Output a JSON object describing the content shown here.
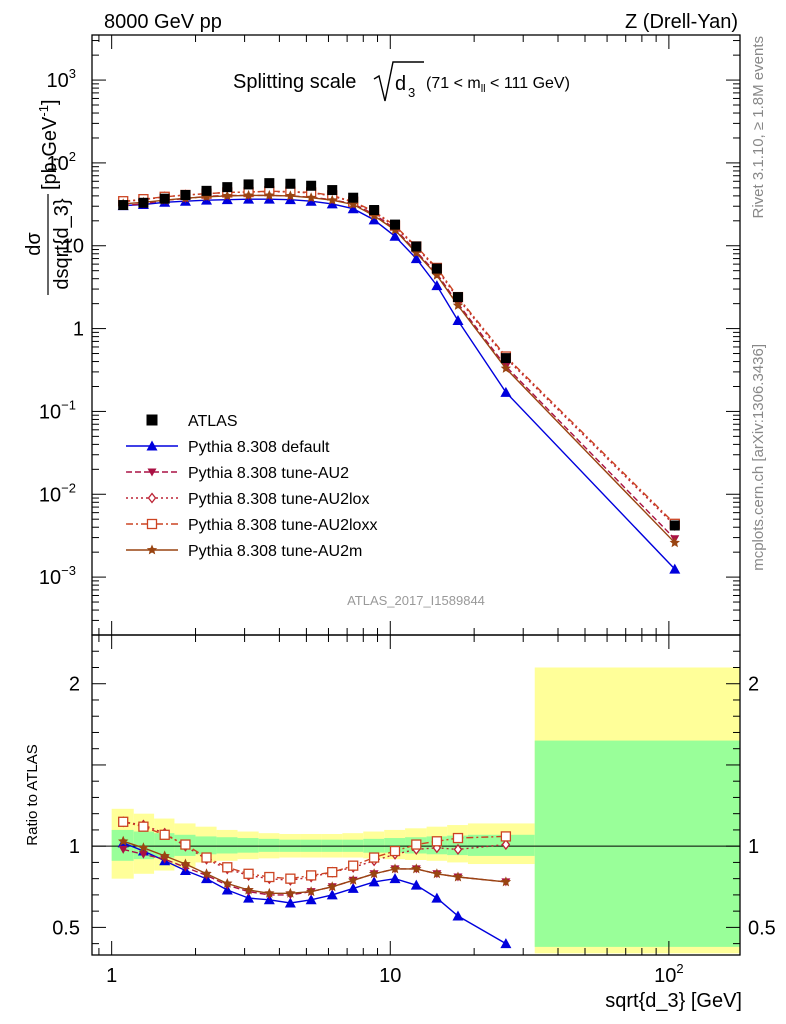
{
  "header": {
    "left": "8000 GeV pp",
    "right": "Z (Drell-Yan)"
  },
  "side_texts": {
    "rivet": "Rivet 3.1.10, ≥ 1.8M events",
    "mcplots": "mcplots.cern.ch [arXiv:1306.3436]"
  },
  "watermark": "ATLAS_2017_I1589844",
  "chart_data": [
    {
      "type": "line",
      "title_main": "Splitting scale",
      "title_sqrt": "d",
      "title_sub": "3",
      "title_range_a": "(71 < m",
      "title_range_sub": "ll",
      "title_range_b": " < 111 GeV)",
      "ylabel_num": "dσ",
      "ylabel_den": "dsqrt{d_3}",
      "ylabel_units": "[pb,GeV",
      "ylabel_units_sup": "-1",
      "ylabel_units_end": "]",
      "xscale": "log",
      "yscale": "log",
      "xlim": [
        0.85,
        180
      ],
      "ylim": [
        0.0002,
        3500
      ],
      "yticks": [
        {
          "v": 0.001,
          "base": "10",
          "exp": "−3"
        },
        {
          "v": 0.01,
          "base": "10",
          "exp": "−2"
        },
        {
          "v": 0.1,
          "base": "10",
          "exp": "−1"
        },
        {
          "v": 1,
          "base": "1",
          "exp": ""
        },
        {
          "v": 10,
          "base": "10",
          "exp": ""
        },
        {
          "v": 100,
          "base": "10",
          "exp": "2"
        },
        {
          "v": 1000,
          "base": "10",
          "exp": "3"
        }
      ],
      "legend_position": "bottom-left",
      "x": [
        1.1,
        1.3,
        1.55,
        1.84,
        2.19,
        2.6,
        3.1,
        3.68,
        4.38,
        5.2,
        6.19,
        7.36,
        8.75,
        10.4,
        12.4,
        14.7,
        17.5,
        26.0,
        105.0
      ],
      "series": [
        {
          "name": "ATLAS",
          "color": "#000000",
          "marker": "square",
          "dash": "none",
          "values": [
            31,
            33,
            37,
            41,
            46,
            51,
            55,
            57,
            56,
            53,
            47,
            38,
            27,
            18,
            9.8,
            5.3,
            2.4,
            0.44,
            0.0042
          ]
        },
        {
          "name": "Pythia 8.308 default",
          "color": "#0000dd",
          "marker": "triangle-up",
          "dash": "none",
          "values": [
            30.5,
            31.5,
            33.5,
            34.5,
            35.5,
            36,
            36.5,
            36.5,
            36,
            34.5,
            32,
            28,
            20.5,
            13,
            7.0,
            3.3,
            1.25,
            0.17,
            0.00125
          ]
        },
        {
          "name": "Pythia 8.308 tune-AU2",
          "color": "#aa1144",
          "marker": "triangle-down",
          "dash": "6,3",
          "values": [
            30.5,
            32,
            35.5,
            37,
            39.5,
            40.5,
            40.5,
            40.5,
            40,
            38.5,
            36,
            32,
            24,
            16,
            8.5,
            4.6,
            2.0,
            0.35,
            0.0029
          ]
        },
        {
          "name": "Pythia 8.308 tune-AU2lox",
          "color": "#bb2233",
          "marker": "diamond",
          "dash": "2,3",
          "values": [
            34,
            36,
            39,
            41,
            42.5,
            44,
            44.5,
            45,
            44.5,
            43.5,
            40,
            33.5,
            25.5,
            17,
            9.5,
            5.2,
            2.3,
            0.44,
            0.0042
          ]
        },
        {
          "name": "Pythia 8.308 tune-AU2loxx",
          "color": "#cc4422",
          "marker": "square-open",
          "dash": "7,3,2,3",
          "values": [
            34.5,
            36.5,
            39,
            41,
            42.5,
            44,
            44.5,
            45.5,
            45,
            44,
            40.5,
            34,
            26,
            17.5,
            9.8,
            5.4,
            2.4,
            0.46,
            0.0044
          ]
        },
        {
          "name": "Pythia 8.308 tune-AU2m",
          "color": "#994411",
          "marker": "star",
          "dash": "none",
          "values": [
            32,
            33.5,
            35.5,
            37.5,
            39,
            40,
            40.5,
            40.5,
            40,
            38,
            35.5,
            31.5,
            23,
            15.5,
            8.2,
            4.4,
            1.9,
            0.33,
            0.0026
          ]
        }
      ]
    },
    {
      "type": "line",
      "ylabel": "Ratio to ATLAS",
      "xlabel": "sqrt{d_3} [GeV]",
      "xscale": "log",
      "xlim": [
        0.85,
        180
      ],
      "ylim": [
        0.33,
        2.3
      ],
      "yticks": [
        {
          "v": 0.5,
          "label": "0.5"
        },
        {
          "v": 1,
          "label": "1"
        },
        {
          "v": 2,
          "label": "2"
        }
      ],
      "xticks": [
        {
          "v": 1,
          "base": "1",
          "exp": ""
        },
        {
          "v": 10,
          "base": "10",
          "exp": ""
        },
        {
          "v": 100,
          "base": "10",
          "exp": "2"
        }
      ],
      "bands": {
        "green_color": "#99ff99",
        "yellow_color": "#ffff99",
        "bin_edges": [
          1.0,
          1.2,
          1.42,
          1.68,
          2.0,
          2.38,
          2.83,
          3.37,
          4.0,
          4.76,
          5.66,
          6.73,
          8.0,
          9.51,
          11.3,
          13.5,
          16.0,
          19.0,
          33.0,
          180.0
        ],
        "green_lo": [
          0.91,
          0.92,
          0.93,
          0.94,
          0.95,
          0.955,
          0.96,
          0.965,
          0.965,
          0.965,
          0.965,
          0.965,
          0.96,
          0.96,
          0.955,
          0.95,
          0.945,
          0.94,
          0.38
        ],
        "green_hi": [
          1.1,
          1.09,
          1.08,
          1.07,
          1.06,
          1.055,
          1.05,
          1.045,
          1.04,
          1.04,
          1.04,
          1.04,
          1.045,
          1.05,
          1.055,
          1.06,
          1.065,
          1.07,
          1.65
        ],
        "yellow_lo": [
          0.8,
          0.83,
          0.85,
          0.87,
          0.9,
          0.91,
          0.92,
          0.925,
          0.93,
          0.93,
          0.93,
          0.93,
          0.925,
          0.92,
          0.915,
          0.91,
          0.9,
          0.89,
          0.34
        ],
        "yellow_hi": [
          1.23,
          1.2,
          1.17,
          1.14,
          1.12,
          1.1,
          1.09,
          1.08,
          1.075,
          1.075,
          1.075,
          1.08,
          1.09,
          1.1,
          1.11,
          1.12,
          1.13,
          1.14,
          2.1
        ]
      },
      "x": [
        1.1,
        1.3,
        1.55,
        1.84,
        2.19,
        2.6,
        3.1,
        3.68,
        4.38,
        5.2,
        6.19,
        7.36,
        8.75,
        10.4,
        12.4,
        14.7,
        17.5,
        26.0
      ],
      "series": [
        {
          "name": "Pythia 8.308 default",
          "color": "#0000dd",
          "marker": "triangle-up",
          "dash": "none",
          "values": [
            1.02,
            0.97,
            0.91,
            0.85,
            0.8,
            0.73,
            0.68,
            0.67,
            0.65,
            0.67,
            0.7,
            0.74,
            0.78,
            0.8,
            0.76,
            0.68,
            0.57,
            0.4
          ]
        },
        {
          "name": "Pythia 8.308 tune-AU2",
          "color": "#aa1144",
          "marker": "triangle-down",
          "dash": "6,3",
          "values": [
            0.98,
            0.95,
            0.92,
            0.87,
            0.82,
            0.76,
            0.72,
            0.7,
            0.7,
            0.72,
            0.75,
            0.79,
            0.83,
            0.86,
            0.86,
            0.83,
            0.81,
            0.78
          ]
        },
        {
          "name": "Pythia 8.308 tune-AU2lox",
          "color": "#bb2233",
          "marker": "diamond",
          "dash": "2,3",
          "values": [
            1.15,
            1.13,
            1.08,
            1.0,
            0.92,
            0.86,
            0.82,
            0.8,
            0.79,
            0.81,
            0.84,
            0.87,
            0.91,
            0.95,
            0.98,
            0.99,
            0.98,
            1.01
          ]
        },
        {
          "name": "Pythia 8.308 tune-AU2loxx",
          "color": "#cc4422",
          "marker": "square-open",
          "dash": "7,3,2,3",
          "values": [
            1.15,
            1.12,
            1.07,
            1.01,
            0.93,
            0.87,
            0.83,
            0.81,
            0.8,
            0.82,
            0.84,
            0.88,
            0.93,
            0.97,
            1.01,
            1.03,
            1.05,
            1.06
          ]
        },
        {
          "name": "Pythia 8.308 tune-AU2m",
          "color": "#994411",
          "marker": "star",
          "dash": "none",
          "values": [
            1.03,
            0.99,
            0.94,
            0.89,
            0.83,
            0.77,
            0.73,
            0.71,
            0.71,
            0.72,
            0.75,
            0.79,
            0.83,
            0.86,
            0.86,
            0.83,
            0.81,
            0.78
          ]
        }
      ]
    }
  ]
}
